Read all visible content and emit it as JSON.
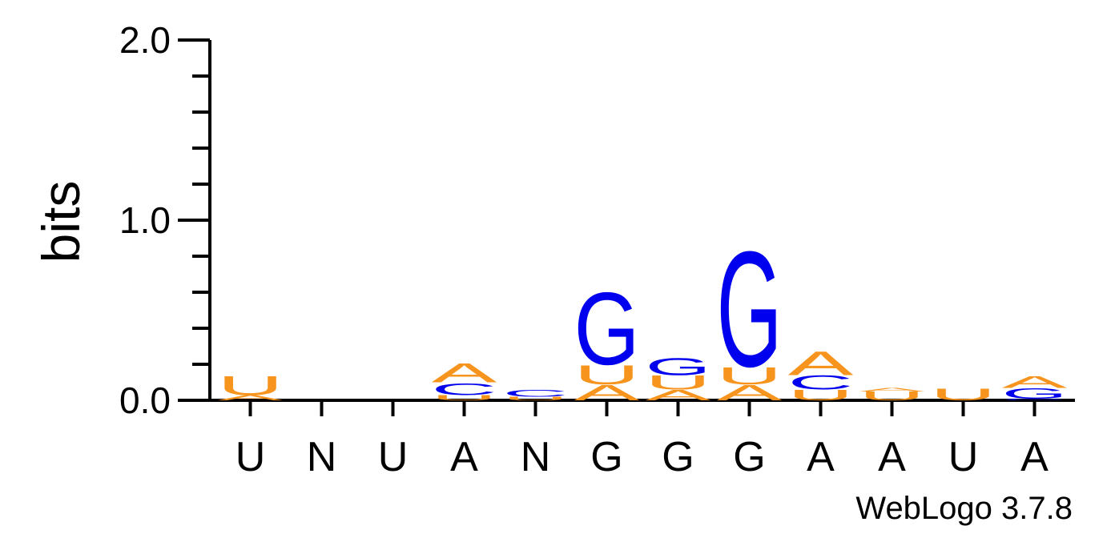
{
  "chart_data": {
    "type": "sequence-logo",
    "ylabel": "bits",
    "ylim": [
      0,
      2
    ],
    "yticks": [
      "0.0",
      "1.0",
      "2.0"
    ],
    "positions": [
      "U",
      "N",
      "U",
      "A",
      "N",
      "G",
      "G",
      "G",
      "A",
      "A",
      "U",
      "A"
    ],
    "colors": {
      "A": "#f7941d",
      "U": "#f7941d",
      "G": "#0000ee",
      "C": "#0000ee"
    },
    "columns": [
      {
        "label": "U",
        "stack": [
          {
            "letter": "A",
            "bits": 0.03
          },
          {
            "letter": "U",
            "bits": 0.11
          }
        ]
      },
      {
        "label": "N",
        "stack": []
      },
      {
        "label": "U",
        "stack": []
      },
      {
        "label": "A",
        "stack": [
          {
            "letter": "U",
            "bits": 0.03
          },
          {
            "letter": "C",
            "bits": 0.07
          },
          {
            "letter": "A",
            "bits": 0.11
          }
        ]
      },
      {
        "label": "N",
        "stack": [
          {
            "letter": "U",
            "bits": 0.02
          },
          {
            "letter": "C",
            "bits": 0.04
          }
        ]
      },
      {
        "label": "G",
        "stack": [
          {
            "letter": "A",
            "bits": 0.09
          },
          {
            "letter": "U",
            "bits": 0.11
          },
          {
            "letter": "G",
            "bits": 0.42
          }
        ]
      },
      {
        "label": "G",
        "stack": [
          {
            "letter": "A",
            "bits": 0.06
          },
          {
            "letter": "U",
            "bits": 0.08
          },
          {
            "letter": "G",
            "bits": 0.1
          }
        ]
      },
      {
        "label": "G",
        "stack": [
          {
            "letter": "A",
            "bits": 0.09
          },
          {
            "letter": "U",
            "bits": 0.1
          },
          {
            "letter": "G",
            "bits": 0.67
          }
        ]
      },
      {
        "label": "A",
        "stack": [
          {
            "letter": "U",
            "bits": 0.06
          },
          {
            "letter": "C",
            "bits": 0.08
          },
          {
            "letter": "A",
            "bits": 0.14
          }
        ]
      },
      {
        "label": "A",
        "stack": [
          {
            "letter": "U",
            "bits": 0.05
          },
          {
            "letter": "A",
            "bits": 0.02
          }
        ]
      },
      {
        "label": "U",
        "stack": [
          {
            "letter": "U",
            "bits": 0.07
          }
        ]
      },
      {
        "label": "A",
        "stack": [
          {
            "letter": "C",
            "bits": 0.01
          },
          {
            "letter": "G",
            "bits": 0.06
          },
          {
            "letter": "A",
            "bits": 0.07
          }
        ]
      }
    ],
    "credit": "WebLogo 3.7.8"
  }
}
